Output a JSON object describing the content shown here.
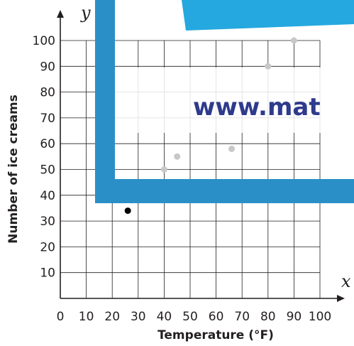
{
  "chart_data": {
    "type": "scatter",
    "title": "",
    "xlabel": "Temperature (°F)",
    "ylabel": "Number of ice creams",
    "x_axis_letter": "x",
    "y_axis_letter": "y",
    "xlim": [
      0,
      100
    ],
    "ylim": [
      0,
      100
    ],
    "x_ticks": [
      "0",
      "10",
      "20",
      "30",
      "40",
      "50",
      "60",
      "70",
      "80",
      "90",
      "100"
    ],
    "y_ticks": [
      "10",
      "20",
      "30",
      "40",
      "50",
      "60",
      "70",
      "80",
      "90",
      "100"
    ],
    "grid": true,
    "points": [
      {
        "x": 26,
        "y": 34
      },
      {
        "x": 40,
        "y": 50
      },
      {
        "x": 45,
        "y": 55
      },
      {
        "x": 66,
        "y": 58
      },
      {
        "x": 80,
        "y": 90
      },
      {
        "x": 90,
        "y": 100
      }
    ]
  },
  "watermark": {
    "text": "www.mat",
    "frame_color": "#2a8fc7",
    "banner_color": "#25a8df",
    "text_color": "#2e3a8c"
  },
  "colors": {
    "grid": "#231f20",
    "point": "#000000",
    "faded_point": "#c8c8c8"
  }
}
